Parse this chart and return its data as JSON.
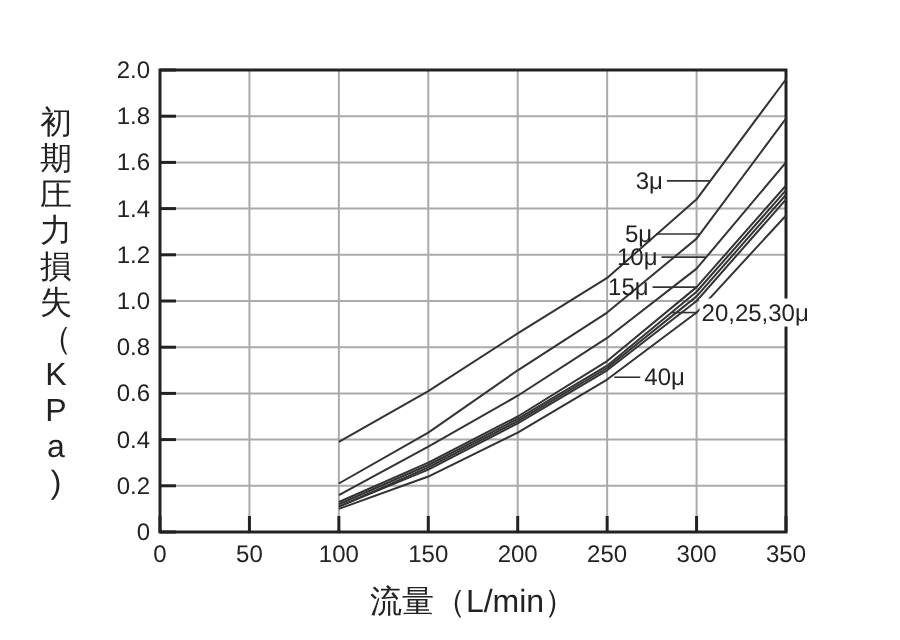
{
  "chart_data": {
    "type": "line",
    "xlabel": "流量（L/min）",
    "ylabel": "初期圧力損失（KPa)",
    "x": [
      100,
      150,
      200,
      250,
      300,
      350
    ],
    "series": [
      {
        "color": "#333333",
        "values": [
          0.39,
          0.61,
          0.86,
          1.1,
          1.44,
          1.96
        ]
      },
      {
        "color": "#333333",
        "values": [
          0.21,
          0.43,
          0.7,
          0.95,
          1.27,
          1.79
        ]
      },
      {
        "color": "#333333",
        "values": [
          0.16,
          0.37,
          0.59,
          0.84,
          1.14,
          1.6
        ]
      },
      {
        "color": "#333333",
        "values": [
          0.13,
          0.3,
          0.5,
          0.74,
          1.06,
          1.5
        ]
      },
      {
        "color": "#333333",
        "values": [
          0.12,
          0.29,
          0.49,
          0.72,
          1.04,
          1.48
        ]
      },
      {
        "color": "#333333",
        "values": [
          0.11,
          0.28,
          0.48,
          0.71,
          1.02,
          1.46
        ]
      },
      {
        "color": "#333333",
        "values": [
          0.11,
          0.27,
          0.47,
          0.7,
          1.0,
          1.44
        ]
      },
      {
        "color": "#333333",
        "values": [
          0.1,
          0.24,
          0.43,
          0.66,
          0.95,
          1.37
        ]
      }
    ],
    "annotations": [
      {
        "text": "3μ",
        "x": 308,
        "y": 1.52
      },
      {
        "text": "5μ",
        "x": 302,
        "y": 1.29
      },
      {
        "text": "10μ",
        "x": 305,
        "y": 1.19
      },
      {
        "text": "15μ",
        "x": 300,
        "y": 1.06
      },
      {
        "text": "20,25,30μ",
        "x": 286,
        "y": 0.95
      },
      {
        "text": "40μ",
        "x": 254,
        "y": 0.67
      }
    ],
    "xlim": [
      0,
      350
    ],
    "ylim": [
      0,
      2
    ],
    "xticks": [
      0,
      50,
      100,
      150,
      200,
      250,
      300,
      350
    ],
    "yticks": [
      0,
      0.2,
      0.4,
      0.6,
      0.8,
      {
        "value": 1,
        "label": "1.0"
      },
      1.2,
      1.4,
      1.6,
      1.8,
      {
        "value": 2,
        "label": "2.0"
      }
    ],
    "grid": true,
    "marker": "none",
    "line_style": "solid"
  }
}
